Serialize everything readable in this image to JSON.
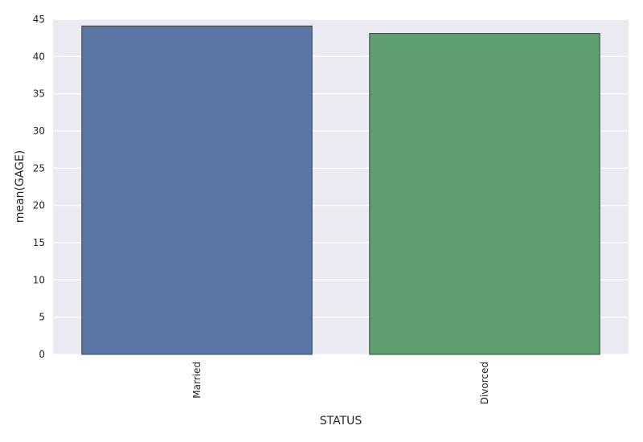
{
  "chart_data": {
    "type": "bar",
    "title": "",
    "xlabel": "STATUS",
    "ylabel": "mean(GAGE)",
    "categories": [
      "Married",
      "Divorced"
    ],
    "values": [
      44.1,
      43.1
    ],
    "ylim": [
      0,
      45
    ],
    "yticks": [
      0,
      5,
      10,
      15,
      20,
      25,
      30,
      35,
      40,
      45
    ],
    "ytick_labels": [
      "0",
      "5",
      "10",
      "15",
      "20",
      "25",
      "30",
      "35",
      "40",
      "45"
    ],
    "colors": [
      "#5875a4",
      "#5f9e6e"
    ],
    "bar_edge_color": "#3f3f3f",
    "background_color": "#eaeaf2",
    "grid": true,
    "grid_color": "#ffffff",
    "xtick_rotation": "vertical"
  }
}
